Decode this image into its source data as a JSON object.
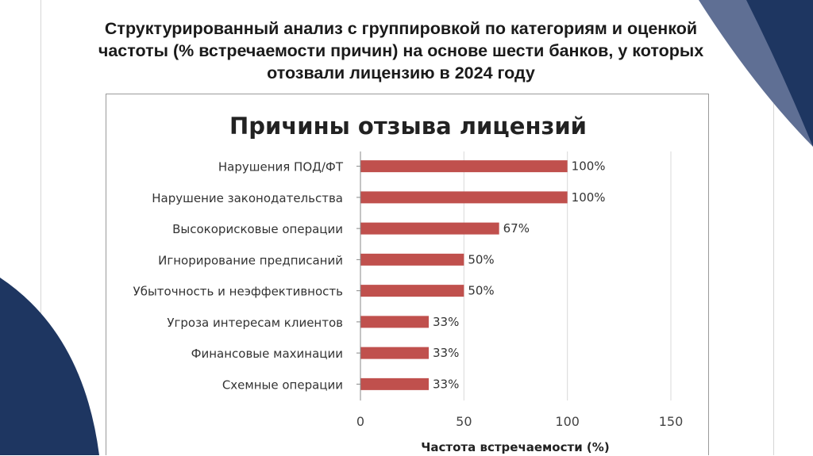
{
  "slide": {
    "title": "Структурированный анализ с группировкой по категориям и оценкой частоты (% встречаемости причин) на основе шести банков, у которых отозвали лицензию в 2024 году"
  },
  "colors": {
    "bar": "#c0504d",
    "navy": "#1e3661",
    "slate": "#5f6f94"
  },
  "chart_data": {
    "type": "bar",
    "orientation": "horizontal",
    "title": "Причины отзыва лицензий",
    "xlabel": "Частота встречаемости (%)",
    "ylabel": "",
    "xlim": [
      0,
      150
    ],
    "xticks": [
      0,
      50,
      100,
      150
    ],
    "grid": "vertical",
    "categories": [
      "Нарушения ПОД/ФТ",
      "Нарушение законодательства",
      "Высокорисковые операции",
      "Игнорирование предписаний",
      "Убыточность и неэффективность",
      "Угроза интересам клиентов",
      "Финансовые махинации",
      "Схемные операции"
    ],
    "values": [
      100,
      100,
      67,
      50,
      50,
      33,
      33,
      33
    ],
    "data_labels": [
      "100%",
      "100%",
      "67%",
      "50%",
      "50%",
      "33%",
      "33%",
      "33%"
    ]
  }
}
